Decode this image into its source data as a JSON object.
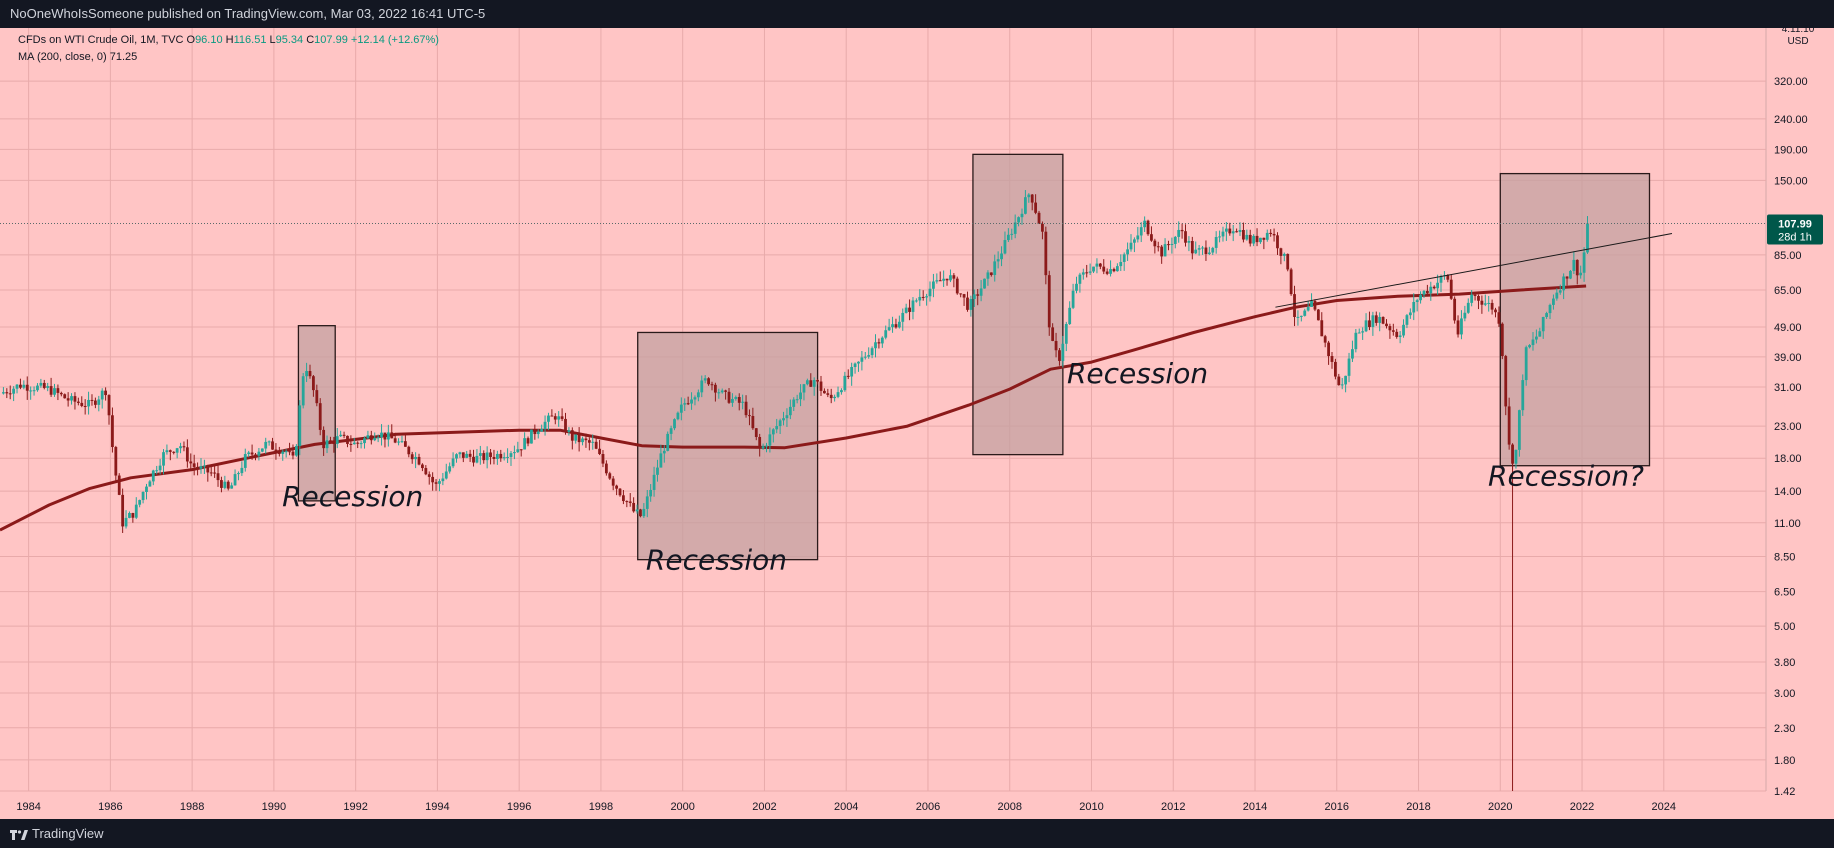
{
  "header": {
    "publisher_line": "NoOneWhoIsSomeone published on TradingView.com, Mar 03, 2022 16:41 UTC-5"
  },
  "footer": {
    "brand": "TradingView",
    "logo_icon": "tradingview-logo-icon"
  },
  "legend": {
    "symbol": "CFDs on WTI Crude Oil, 1M, TVC",
    "open_label": "O",
    "open": "96.10",
    "high_label": "H",
    "high": "116.51",
    "low_label": "L",
    "low": "95.34",
    "close_label": "C",
    "close": "107.99",
    "change": "+12.14 (+12.67%)",
    "ma_label": "MA (200, close, 0)",
    "ma_value": "71.25"
  },
  "axis": {
    "y_axis_title_top": "4:11:10",
    "currency": "USD"
  },
  "price_tag": {
    "value": "107.99",
    "countdown": "28d 1h"
  },
  "colors": {
    "background": "#ffc5c5",
    "up_candle": "#26a69a",
    "down_candle": "#8b1a1a",
    "moving_average": "#8b1a1a",
    "highlight_box": "#c4a0a0",
    "price_tag_bg": "#00574a"
  },
  "chart_data": {
    "type": "candlestick",
    "title": "CFDs on WTI Crude Oil, 1M, TVC",
    "yscale": "log",
    "ylim": [
      1.42,
      480
    ],
    "xlim": [
      1983.3,
      2026.5
    ],
    "x_ticks": [
      "1984",
      "1986",
      "1988",
      "1990",
      "1992",
      "1994",
      "1996",
      "1998",
      "2000",
      "2002",
      "2004",
      "2006",
      "2008",
      "2010",
      "2012",
      "2014",
      "2016",
      "2018",
      "2020",
      "2022",
      "2024"
    ],
    "y_ticks": [
      "320.00",
      "240.00",
      "190.00",
      "150.00",
      "85.00",
      "65.00",
      "49.00",
      "39.00",
      "31.00",
      "23.00",
      "18.00",
      "14.00",
      "11.00",
      "8.50",
      "6.50",
      "5.00",
      "3.80",
      "3.00",
      "2.30",
      "1.80",
      "1.42"
    ],
    "price_path": [
      [
        1983.3,
        29.5
      ],
      [
        1983.8,
        31.5
      ],
      [
        1984.5,
        30.5
      ],
      [
        1985.0,
        28.0
      ],
      [
        1985.5,
        27.0
      ],
      [
        1985.9,
        30.5
      ],
      [
        1986.1,
        17.0
      ],
      [
        1986.3,
        11.0
      ],
      [
        1986.6,
        12.0
      ],
      [
        1986.9,
        15.0
      ],
      [
        1987.3,
        18.5
      ],
      [
        1987.7,
        20.0
      ],
      [
        1988.0,
        17.0
      ],
      [
        1988.5,
        16.0
      ],
      [
        1988.9,
        14.0
      ],
      [
        1989.3,
        18.0
      ],
      [
        1989.8,
        20.0
      ],
      [
        1990.3,
        19.0
      ],
      [
        1990.5,
        17.5
      ],
      [
        1990.75,
        38.0
      ],
      [
        1991.0,
        29.0
      ],
      [
        1991.2,
        20.0
      ],
      [
        1991.6,
        21.0
      ],
      [
        1992.0,
        20.0
      ],
      [
        1992.5,
        22.0
      ],
      [
        1993.0,
        20.5
      ],
      [
        1993.6,
        17.5
      ],
      [
        1993.95,
        14.5
      ],
      [
        1994.5,
        18.5
      ],
      [
        1995.0,
        18.0
      ],
      [
        1995.5,
        18.5
      ],
      [
        1996.0,
        19.5
      ],
      [
        1996.5,
        23.0
      ],
      [
        1996.9,
        25.0
      ],
      [
        1997.3,
        21.0
      ],
      [
        1997.8,
        20.0
      ],
      [
        1998.3,
        15.0
      ],
      [
        1998.8,
        12.0
      ],
      [
        1999.0,
        11.5
      ],
      [
        1999.5,
        19.0
      ],
      [
        2000.0,
        27.0
      ],
      [
        2000.6,
        33.0
      ],
      [
        2001.0,
        29.0
      ],
      [
        2001.5,
        27.0
      ],
      [
        2001.9,
        19.0
      ],
      [
        2002.3,
        23.0
      ],
      [
        2002.8,
        29.0
      ],
      [
        2003.2,
        33.0
      ],
      [
        2003.6,
        28.0
      ],
      [
        2004.0,
        33.0
      ],
      [
        2004.8,
        45.0
      ],
      [
        2005.3,
        52.0
      ],
      [
        2005.8,
        62.0
      ],
      [
        2006.5,
        73.0
      ],
      [
        2007.0,
        57.0
      ],
      [
        2007.5,
        73.0
      ],
      [
        2007.9,
        93.0
      ],
      [
        2008.5,
        138.0
      ],
      [
        2008.8,
        100.0
      ],
      [
        2009.0,
        44.0
      ],
      [
        2009.2,
        38.0
      ],
      [
        2009.6,
        68.0
      ],
      [
        2010.0,
        78.0
      ],
      [
        2010.5,
        76.0
      ],
      [
        2011.0,
        92.0
      ],
      [
        2011.3,
        108.0
      ],
      [
        2011.7,
        86.0
      ],
      [
        2012.2,
        103.0
      ],
      [
        2012.5,
        86.0
      ],
      [
        2012.9,
        90.0
      ],
      [
        2013.5,
        106.0
      ],
      [
        2013.9,
        94.0
      ],
      [
        2014.4,
        102.0
      ],
      [
        2014.8,
        78.0
      ],
      [
        2015.0,
        50.0
      ],
      [
        2015.4,
        58.0
      ],
      [
        2015.8,
        40.0
      ],
      [
        2016.1,
        30.0
      ],
      [
        2016.5,
        48.0
      ],
      [
        2017.0,
        53.0
      ],
      [
        2017.5,
        46.0
      ],
      [
        2018.0,
        62.0
      ],
      [
        2018.7,
        73.0
      ],
      [
        2018.95,
        46.0
      ],
      [
        2019.3,
        63.0
      ],
      [
        2019.8,
        57.0
      ],
      [
        2020.0,
        51.0
      ],
      [
        2020.2,
        20.0
      ],
      [
        2020.35,
        17.0
      ],
      [
        2020.6,
        40.0
      ],
      [
        2020.95,
        47.0
      ],
      [
        2021.3,
        62.0
      ],
      [
        2021.8,
        80.0
      ],
      [
        2021.95,
        72.0
      ],
      [
        2022.1,
        95.0
      ],
      [
        2022.17,
        107.99
      ]
    ],
    "moving_average": {
      "name": "MA (200, close, 0)",
      "last": 71.25,
      "path": [
        [
          1983.3,
          10.4
        ],
        [
          1984.5,
          12.6
        ],
        [
          1985.5,
          14.3
        ],
        [
          1986.5,
          15.5
        ],
        [
          1988.0,
          16.5
        ],
        [
          1989.5,
          18.2
        ],
        [
          1991.0,
          20.0
        ],
        [
          1993.0,
          21.6
        ],
        [
          1996.0,
          22.3
        ],
        [
          1997.0,
          22.3
        ],
        [
          1998.0,
          21.0
        ],
        [
          1999.0,
          19.8
        ],
        [
          2000.0,
          19.6
        ],
        [
          2001.5,
          19.6
        ],
        [
          2002.5,
          19.5
        ],
        [
          2004.0,
          21.0
        ],
        [
          2005.5,
          23.0
        ],
        [
          2007.0,
          27.0
        ],
        [
          2008.0,
          30.5
        ],
        [
          2009.0,
          35.5
        ],
        [
          2010.0,
          37.5
        ],
        [
          2011.0,
          41.0
        ],
        [
          2012.5,
          47.0
        ],
        [
          2014.0,
          53.0
        ],
        [
          2015.0,
          57.0
        ],
        [
          2016.0,
          60.0
        ],
        [
          2017.5,
          62.0
        ],
        [
          2019.0,
          63.0
        ],
        [
          2020.5,
          65.0
        ],
        [
          2022.1,
          67.0
        ]
      ]
    },
    "trendline": [
      [
        2014.5,
        57.0
      ],
      [
        2024.2,
        100.0
      ]
    ],
    "last_price_line": 107.99,
    "annotations": [
      {
        "label": "Recession",
        "box": {
          "x": [
            1990.6,
            1991.5
          ],
          "y": [
            13.0,
            49.5
          ]
        },
        "text_at": [
          1990.2,
          12.5
        ]
      },
      {
        "label": "Recession",
        "box": {
          "x": [
            1998.9,
            2003.3
          ],
          "y": [
            8.3,
            47.0
          ]
        },
        "text_at": [
          1999.1,
          7.7
        ]
      },
      {
        "label": "Recession",
        "box": {
          "x": [
            2007.1,
            2009.3
          ],
          "y": [
            18.5,
            183.0
          ]
        },
        "text_at": [
          2009.4,
          32.0
        ]
      },
      {
        "label": "Recession?",
        "box": {
          "x": [
            2020.0,
            2023.65
          ],
          "y": [
            17.0,
            158.0
          ]
        },
        "text_at": [
          2019.7,
          14.6
        ]
      }
    ],
    "vline_x": 2020.3
  }
}
